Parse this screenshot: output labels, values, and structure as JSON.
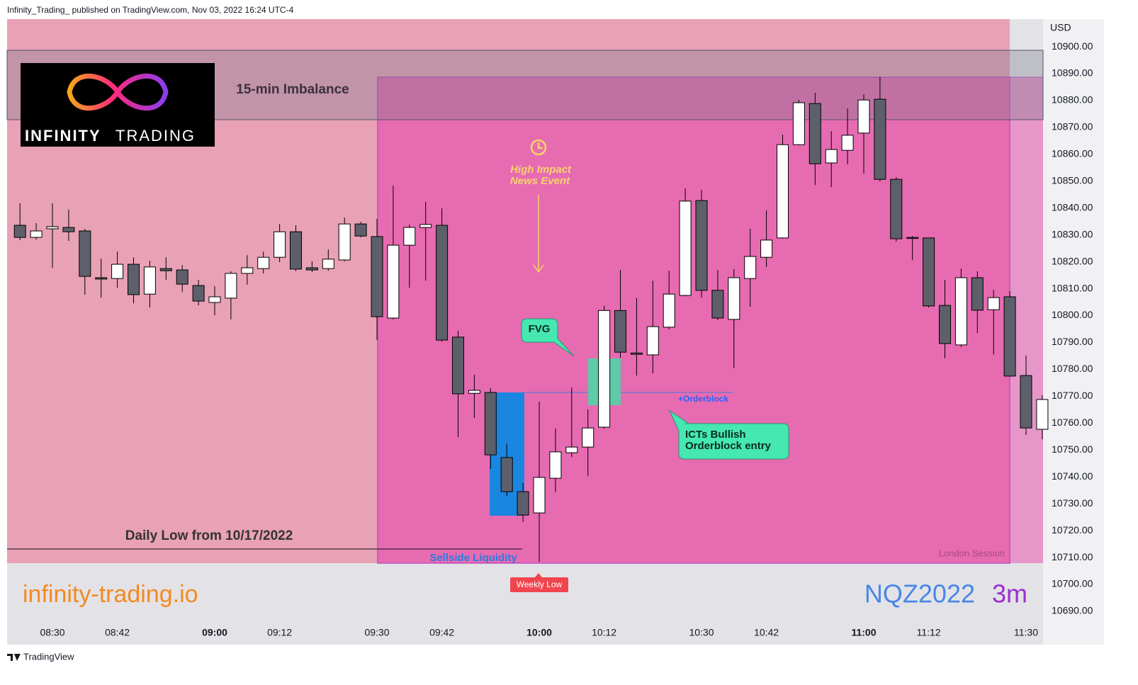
{
  "header": {
    "text": "Infinity_Trading_ published on TradingView.com, Nov 03, 2022 16:24 UTC-4"
  },
  "footer": {
    "text": "TradingView"
  },
  "logo": {
    "word1": "INFINITY",
    "word2": "TRADING"
  },
  "annotations": {
    "imbalance": "15-min Imbalance",
    "news_event": [
      "High Impact",
      "News Event"
    ],
    "fvg": "FVG",
    "orderblock": "+Orderblock",
    "entry": [
      "ICTs Bullish",
      "Orderblock entry"
    ],
    "daily_low": "Daily Low from 10/17/2022",
    "sellside": "Sellside Liquidity",
    "weekly_low": "Weekly Low",
    "session": "London Session",
    "website": "infinity-trading.io",
    "symbol": "NQZ2022",
    "interval": "3m"
  },
  "chart_data": {
    "type": "candlestick",
    "y_axis_label": "USD",
    "categories": [
      null,
      null,
      "08:30",
      null,
      null,
      null,
      "08:42",
      null,
      null,
      null,
      null,
      null,
      "09:00",
      null,
      null,
      null,
      "09:12",
      null,
      null,
      null,
      null,
      null,
      "09:30",
      null,
      null,
      null,
      "09:42",
      null,
      null,
      null,
      null,
      null,
      "10:00",
      null,
      null,
      null,
      "10:12",
      null,
      null,
      null,
      null,
      null,
      "10:30",
      null,
      null,
      null,
      "10:42",
      null,
      null,
      null,
      null,
      null,
      "11:00",
      null,
      null,
      null,
      "11:12",
      null,
      null,
      null,
      null,
      null,
      "11:30",
      null
    ],
    "open": [
      10833.6,
      10829.1,
      10832.3,
      10832.8,
      10831.5,
      10814.1,
      10813.8,
      10819.1,
      10808.0,
      10817.5,
      10817.0,
      10811.2,
      10804.9,
      10806.5,
      10815.7,
      10817.5,
      10821.7,
      10831.2,
      10817.8,
      10817.5,
      10820.7,
      10834.1,
      10829.4,
      10799.1,
      10826.2,
      10832.8,
      10833.6,
      10792.0,
      10771.1,
      10771.4,
      10747.2,
      10734.5,
      10726.6,
      10739.5,
      10749.0,
      10751.1,
      10758.5,
      10801.9,
      10786.1,
      10785.4,
      10795.7,
      10807.5,
      10842.8,
      10809.4,
      10798.6,
      10813.8,
      10821.7,
      10828.9,
      10863.6,
      10878.9,
      10856.8,
      10861.5,
      10867.9,
      10880.5,
      10850.7,
      10829.1,
      10828.9,
      10803.8,
      10789.1,
      10814.1,
      10802.2,
      10807.0,
      10777.7,
      10757.7
    ],
    "high": [
      10841.8,
      10834.4,
      10841.8,
      10839.4,
      10832.3,
      10821.2,
      10823.8,
      10821.7,
      10820.4,
      10821.7,
      10818.8,
      10813.3,
      10810.9,
      10816.5,
      10822.5,
      10823.8,
      10834.1,
      10833.6,
      10820.2,
      10824.6,
      10836.5,
      10834.9,
      10836.0,
      10848.4,
      10833.9,
      10842.3,
      10839.9,
      10794.3,
      10778.0,
      10773.0,
      10752.4,
      10737.7,
      10768.0,
      10758.0,
      10773.3,
      10765.1,
      10803.6,
      10817.0,
      10806.5,
      10813.0,
      10816.7,
      10847.3,
      10846.8,
      10817.0,
      10817.3,
      10832.3,
      10839.1,
      10867.3,
      10880.2,
      10882.9,
      10868.6,
      10877.1,
      10882.3,
      10888.9,
      10851.5,
      10829.6,
      10828.9,
      10813.3,
      10817.5,
      10816.5,
      10809.6,
      10809.1,
      10785.1,
      10770.4
    ],
    "low": [
      10828.1,
      10828.3,
      10817.8,
      10827.8,
      10807.8,
      10806.7,
      10810.4,
      10804.6,
      10803.0,
      10813.3,
      10808.8,
      10803.8,
      10800.1,
      10798.6,
      10811.5,
      10815.7,
      10819.9,
      10816.5,
      10816.2,
      10816.7,
      10820.2,
      10829.1,
      10790.9,
      10798.6,
      10810.4,
      10813.0,
      10790.4,
      10754.8,
      10761.9,
      10743.0,
      10732.9,
      10723.2,
      10708.4,
      10734.3,
      10747.4,
      10740.3,
      10757.9,
      10784.3,
      10777.7,
      10778.5,
      10794.9,
      10807.2,
      10806.7,
      10798.3,
      10780.4,
      10803.3,
      10818.1,
      10828.6,
      10863.4,
      10848.6,
      10847.8,
      10856.3,
      10852.8,
      10849.9,
      10827.5,
      10820.7,
      10803.0,
      10784.1,
      10788.3,
      10793.5,
      10785.6,
      10777.5,
      10755.6,
      10754.0
    ],
    "close": [
      10829.1,
      10831.5,
      10833.1,
      10831.2,
      10814.6,
      10813.6,
      10819.1,
      10807.8,
      10818.1,
      10816.7,
      10811.7,
      10805.4,
      10807.0,
      10815.7,
      10817.8,
      10821.7,
      10831.2,
      10817.3,
      10817.0,
      10821.0,
      10834.1,
      10829.6,
      10799.6,
      10826.2,
      10832.8,
      10833.9,
      10790.9,
      10770.9,
      10772.2,
      10748.2,
      10734.5,
      10725.8,
      10739.8,
      10749.3,
      10751.1,
      10758.2,
      10801.9,
      10786.4,
      10785.6,
      10795.9,
      10808.0,
      10842.6,
      10809.4,
      10799.1,
      10814.1,
      10822.0,
      10828.1,
      10863.6,
      10879.2,
      10856.5,
      10861.8,
      10867.1,
      10880.2,
      10850.7,
      10828.6,
      10828.9,
      10803.6,
      10789.6,
      10814.1,
      10802.0,
      10806.7,
      10777.5,
      10758.2,
      10768.8
    ],
    "up_color": "#ffffff",
    "down_color": "#5d606b",
    "wick_color": "#000000",
    "ylim": [
      10677.6,
      10910.3
    ],
    "yticks": [
      {
        "value": 10900,
        "label": "10900.00"
      },
      {
        "value": 10890,
        "label": "10890.00"
      },
      {
        "value": 10880,
        "label": "10880.00"
      },
      {
        "value": 10870,
        "label": "10870.00"
      },
      {
        "value": 10860,
        "label": "10860.00"
      },
      {
        "value": 10850,
        "label": "10850.00"
      },
      {
        "value": 10840,
        "label": "10840.00"
      },
      {
        "value": 10830,
        "label": "10830.00"
      },
      {
        "value": 10820,
        "label": "10820.00"
      },
      {
        "value": 10810,
        "label": "10810.00"
      },
      {
        "value": 10800,
        "label": "10800.00"
      },
      {
        "value": 10790,
        "label": "10790.00"
      },
      {
        "value": 10780,
        "label": "10780.00"
      },
      {
        "value": 10770,
        "label": "10770.00"
      },
      {
        "value": 10760,
        "label": "10760.00"
      },
      {
        "value": 10750,
        "label": "10750.00"
      },
      {
        "value": 10740,
        "label": "10740.00"
      },
      {
        "value": 10730,
        "label": "10730.00"
      },
      {
        "value": 10720,
        "label": "10720.00"
      },
      {
        "value": 10710,
        "label": "10710.00"
      },
      {
        "value": 10700,
        "label": "10700.00"
      },
      {
        "value": 10690,
        "label": "10690.00"
      }
    ],
    "grid": false
  }
}
